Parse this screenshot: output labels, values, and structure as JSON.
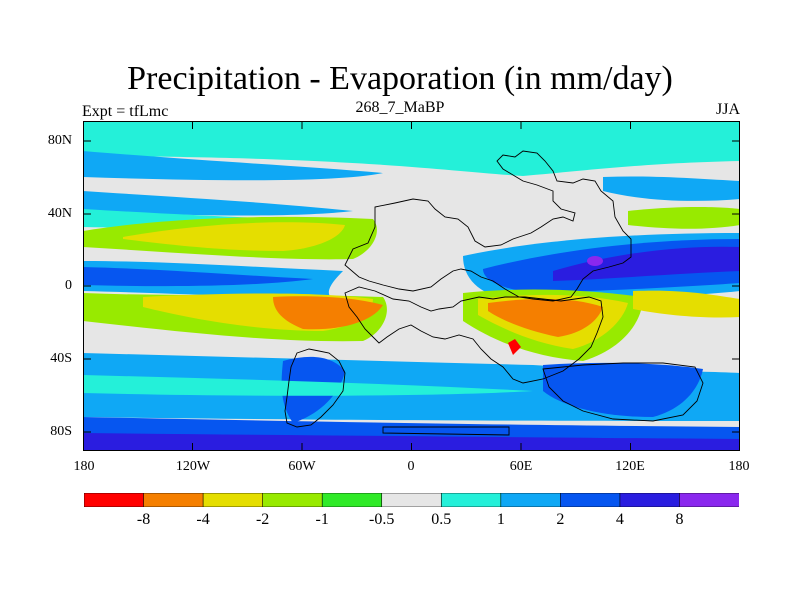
{
  "title": "Precipitation - Evaporation (in mm/day)",
  "subtitle_left": "Expt = tfLmc",
  "subtitle_center": "268_7_MaBP",
  "subtitle_right": "JJA",
  "y_ticks": [
    "80N",
    "40N",
    "0",
    "40S",
    "80S"
  ],
  "x_ticks": [
    "180",
    "120W",
    "60W",
    "0",
    "60E",
    "120E",
    "180"
  ],
  "colorbar": {
    "labels": [
      "-8",
      "-4",
      "-2",
      "-1",
      "-0.5",
      "0.5",
      "1",
      "2",
      "4",
      "8"
    ],
    "colors": [
      "#ff0000",
      "#f57f00",
      "#e5de00",
      "#98ea00",
      "#2fea28",
      "#e6e6e6",
      "#24f0d9",
      "#0fa8f5",
      "#0656f0",
      "#2a1de0",
      "#8a28ee"
    ]
  }
}
